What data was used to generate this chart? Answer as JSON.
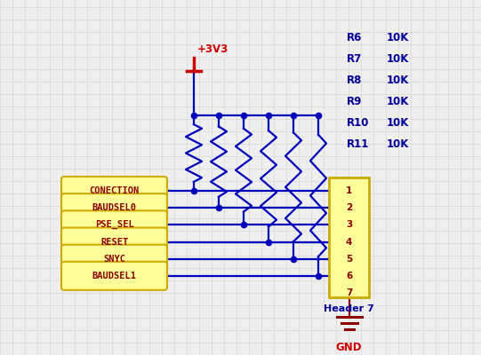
{
  "background_color": "#efefef",
  "grid_color": "#d8d8d8",
  "wire_color": "#0000bb",
  "black_wire": "#000000",
  "label_color": "#8b0000",
  "header_fill": "#ffff99",
  "header_stroke": "#ccaa00",
  "pin_labels": [
    "CONECTION",
    "BAUDSEL0",
    "PSE_SEL",
    "RESET",
    "SNYC",
    "BAUDSEL1"
  ],
  "header_pins": [
    "1",
    "2",
    "3",
    "4",
    "5",
    "6",
    "7"
  ],
  "resistor_labels": [
    "R6",
    "R7",
    "R8",
    "R9",
    "R10",
    "R11"
  ],
  "resistor_value": "10K",
  "vcc_label": "+3V3",
  "gnd_label": "GND",
  "header_label": "Header 7",
  "blue_text_color": "#000099",
  "red_text_color": "#cc0000",
  "dark_red": "#8b0000",
  "figw": 5.41,
  "figh": 4.0,
  "dpi": 100
}
